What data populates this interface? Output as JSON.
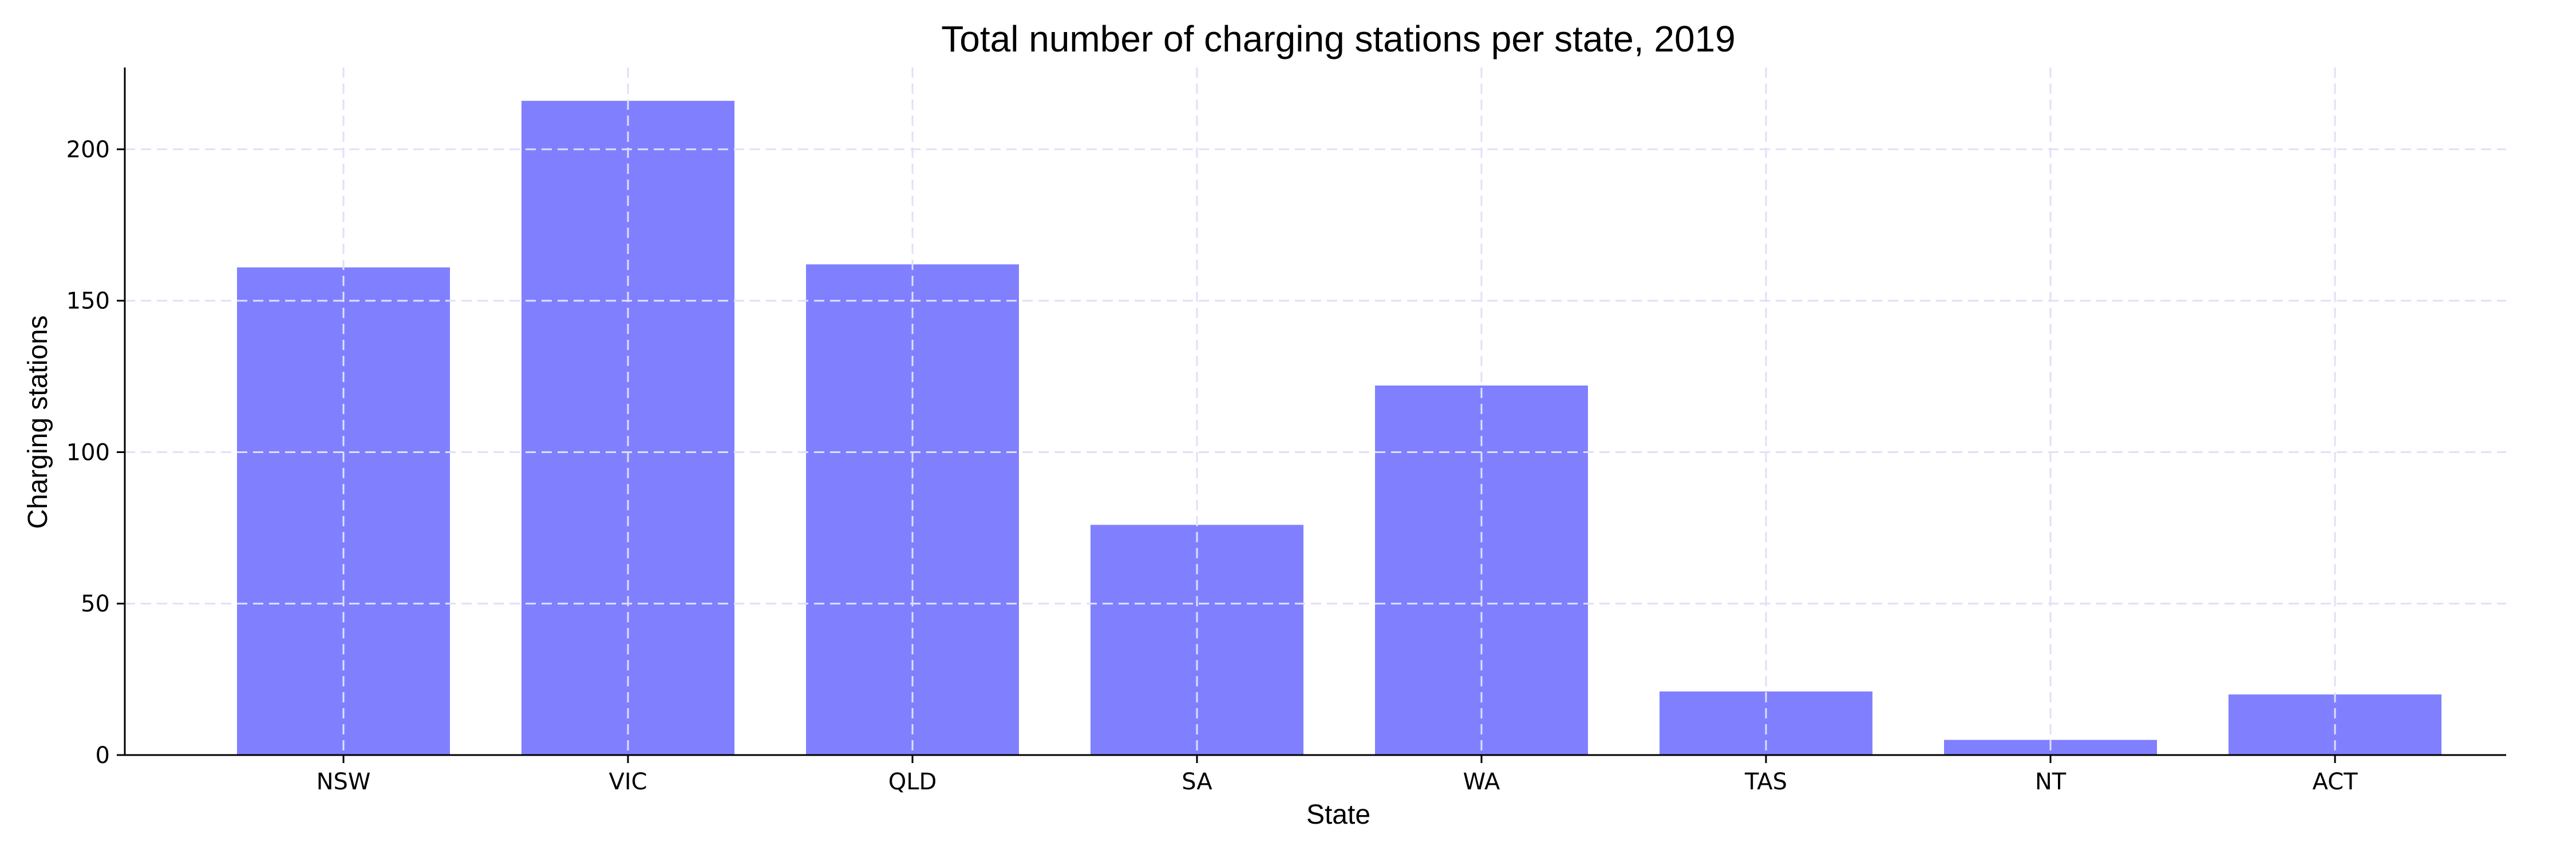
{
  "chart_data": {
    "type": "bar",
    "title": "Total number of charging stations per state, 2019",
    "xlabel": "State",
    "ylabel": "Charging stations",
    "categories": [
      "NSW",
      "VIC",
      "QLD",
      "SA",
      "WA",
      "TAS",
      "NT",
      "ACT"
    ],
    "values": [
      161,
      216,
      162,
      76,
      122,
      21,
      5,
      20
    ],
    "ylim": [
      0,
      227
    ],
    "yticks": [
      0,
      50,
      100,
      150,
      200
    ],
    "grid": true,
    "bar_color": "#8080ff",
    "grid_color": "#e0e0f8"
  }
}
